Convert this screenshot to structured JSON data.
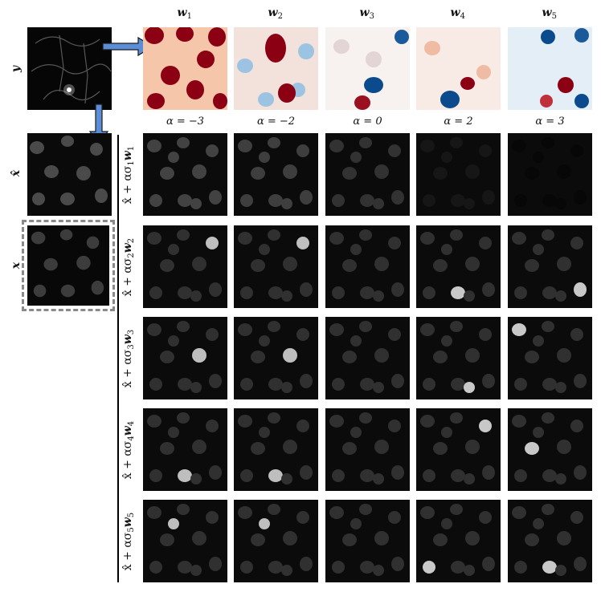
{
  "labels": {
    "y": "y",
    "xhat": "x̂",
    "x": "x"
  },
  "columns": [
    {
      "w": "w",
      "sub": "1",
      "alpha": "α = −3"
    },
    {
      "w": "w",
      "sub": "2",
      "alpha": "α = −2"
    },
    {
      "w": "w",
      "sub": "3",
      "alpha": "α = 0"
    },
    {
      "w": "w",
      "sub": "4",
      "alpha": "α = 2"
    },
    {
      "w": "w",
      "sub": "5",
      "alpha": "α = 3"
    }
  ],
  "rows": [
    {
      "base": "x̂ + ασ",
      "sub": "1",
      "w": "w",
      "wsub": "1"
    },
    {
      "base": "x̂ + ασ",
      "sub": "2",
      "w": "w",
      "wsub": "2"
    },
    {
      "base": "x̂ + ασ",
      "sub": "3",
      "w": "w",
      "wsub": "3"
    },
    {
      "base": "x̂ + ασ",
      "sub": "4",
      "w": "w",
      "wsub": "4"
    },
    {
      "base": "x̂ + ασ",
      "sub": "5",
      "w": "w",
      "wsub": "5"
    }
  ],
  "colors": {
    "arrow": "#5b8ed6",
    "dashed_frame": "#8a8a8a",
    "red": "#8b0012",
    "blue": "#0b4a8c"
  }
}
